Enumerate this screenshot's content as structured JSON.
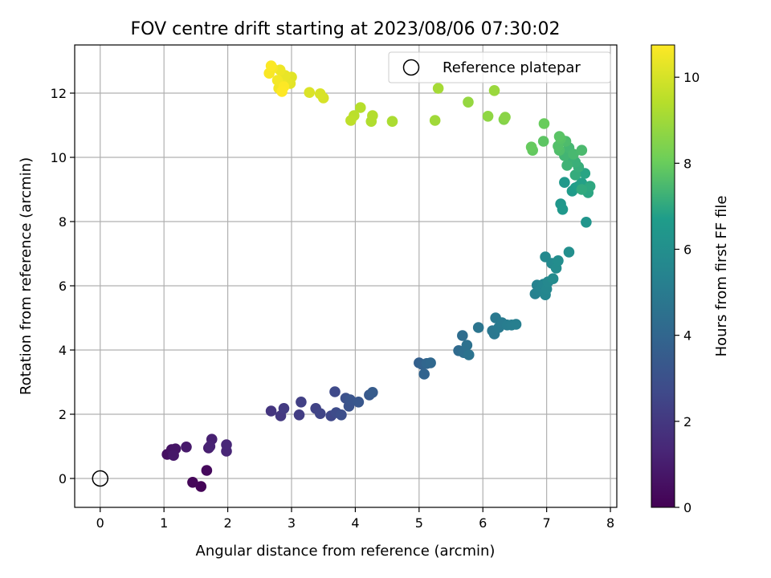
{
  "chart_data": {
    "type": "scatter",
    "title": "FOV centre drift starting at 2023/08/06 07:30:02",
    "xlabel": "Angular distance from reference (arcmin)",
    "ylabel": "Rotation from reference (arcmin)",
    "xlim": [
      -0.4,
      8.1
    ],
    "ylim": [
      -0.9,
      13.5
    ],
    "x_ticks": [
      0,
      1,
      2,
      3,
      4,
      5,
      6,
      7,
      8
    ],
    "y_ticks": [
      0,
      2,
      4,
      6,
      8,
      10,
      12
    ],
    "grid": true,
    "legend": {
      "position": "top-right",
      "label": "Reference platepar"
    },
    "reference_point": {
      "x": 0,
      "y": 0
    },
    "colorbar": {
      "label": "Hours from first FF file",
      "range": [
        0,
        10.75
      ],
      "ticks": [
        0,
        2,
        4,
        6,
        8,
        10
      ],
      "colormap": [
        "#440154",
        "#482777",
        "#3f4a8a",
        "#31678e",
        "#26838f",
        "#1f9d8a",
        "#6cce5a",
        "#b6de2b",
        "#fee825"
      ]
    },
    "points": [
      [
        1.58,
        -0.25,
        0.1
      ],
      [
        1.45,
        -0.12,
        0.2
      ],
      [
        1.67,
        0.25,
        0.3
      ],
      [
        1.05,
        0.75,
        0.5
      ],
      [
        1.12,
        0.9,
        0.6
      ],
      [
        1.18,
        0.92,
        0.7
      ],
      [
        1.15,
        0.72,
        0.8
      ],
      [
        1.35,
        0.98,
        0.9
      ],
      [
        1.7,
        0.95,
        1.0
      ],
      [
        1.75,
        1.22,
        1.1
      ],
      [
        1.72,
        1.0,
        1.2
      ],
      [
        1.98,
        0.85,
        1.3
      ],
      [
        1.98,
        1.05,
        1.4
      ],
      [
        2.68,
        2.1,
        1.9
      ],
      [
        2.83,
        1.95,
        2.0
      ],
      [
        2.88,
        2.18,
        2.1
      ],
      [
        3.12,
        1.98,
        2.2
      ],
      [
        3.15,
        2.38,
        2.3
      ],
      [
        3.38,
        2.18,
        2.4
      ],
      [
        3.45,
        2.02,
        2.5
      ],
      [
        3.62,
        1.95,
        2.6
      ],
      [
        3.68,
        2.7,
        2.7
      ],
      [
        3.7,
        2.05,
        2.8
      ],
      [
        3.78,
        1.98,
        2.9
      ],
      [
        3.85,
        2.5,
        3.0
      ],
      [
        3.9,
        2.25,
        3.1
      ],
      [
        3.92,
        2.45,
        3.2
      ],
      [
        4.05,
        2.38,
        3.3
      ],
      [
        4.22,
        2.6,
        3.4
      ],
      [
        4.27,
        2.68,
        3.5
      ],
      [
        5.0,
        3.6,
        3.7
      ],
      [
        5.05,
        3.55,
        3.8
      ],
      [
        5.08,
        3.25,
        3.9
      ],
      [
        5.12,
        3.58,
        4.0
      ],
      [
        5.18,
        3.6,
        4.1
      ],
      [
        5.62,
        3.98,
        4.2
      ],
      [
        5.68,
        4.45,
        4.3
      ],
      [
        5.7,
        3.92,
        4.4
      ],
      [
        5.75,
        4.15,
        4.5
      ],
      [
        5.78,
        3.85,
        4.6
      ],
      [
        5.93,
        4.7,
        4.7
      ],
      [
        6.15,
        4.6,
        4.8
      ],
      [
        6.18,
        4.5,
        4.85
      ],
      [
        6.2,
        5.0,
        4.9
      ],
      [
        6.25,
        4.7,
        4.95
      ],
      [
        6.3,
        4.85,
        5.0
      ],
      [
        6.38,
        4.78,
        5.1
      ],
      [
        6.45,
        4.78,
        5.15
      ],
      [
        6.52,
        4.8,
        5.2
      ],
      [
        6.82,
        5.75,
        5.3
      ],
      [
        6.85,
        6.02,
        5.35
      ],
      [
        6.88,
        5.85,
        5.4
      ],
      [
        6.92,
        5.95,
        5.45
      ],
      [
        6.95,
        6.05,
        5.5
      ],
      [
        6.98,
        5.72,
        5.55
      ],
      [
        7.0,
        5.9,
        5.6
      ],
      [
        7.02,
        6.12,
        5.65
      ],
      [
        6.98,
        6.9,
        5.7
      ],
      [
        7.08,
        6.7,
        5.75
      ],
      [
        7.1,
        6.22,
        5.8
      ],
      [
        7.15,
        6.55,
        5.85
      ],
      [
        7.18,
        6.78,
        5.9
      ],
      [
        7.35,
        7.05,
        6.0
      ],
      [
        7.62,
        7.98,
        6.3
      ],
      [
        7.22,
        8.55,
        6.4
      ],
      [
        7.25,
        8.38,
        6.45
      ],
      [
        7.28,
        9.22,
        6.5
      ],
      [
        7.4,
        8.95,
        6.6
      ],
      [
        7.45,
        9.05,
        6.7
      ],
      [
        7.5,
        9.1,
        6.75
      ],
      [
        7.55,
        9.2,
        6.8
      ],
      [
        7.6,
        9.5,
        6.9
      ],
      [
        7.65,
        8.9,
        6.95
      ],
      [
        7.68,
        9.1,
        7.0
      ],
      [
        7.55,
        9.0,
        7.05
      ],
      [
        7.45,
        9.45,
        7.1
      ],
      [
        7.5,
        9.7,
        7.15
      ],
      [
        7.45,
        9.85,
        7.2
      ],
      [
        7.38,
        10.0,
        7.25
      ],
      [
        7.32,
        9.75,
        7.3
      ],
      [
        7.28,
        10.05,
        7.35
      ],
      [
        7.35,
        10.3,
        7.4
      ],
      [
        7.42,
        10.1,
        7.45
      ],
      [
        7.55,
        10.22,
        7.5
      ],
      [
        7.3,
        10.5,
        7.55
      ],
      [
        7.2,
        10.22,
        7.6
      ],
      [
        7.18,
        10.35,
        7.65
      ],
      [
        7.22,
        10.58,
        7.7
      ],
      [
        7.2,
        10.65,
        7.75
      ],
      [
        6.95,
        10.5,
        7.8
      ],
      [
        6.78,
        10.22,
        7.9
      ],
      [
        6.76,
        10.32,
        7.95
      ],
      [
        6.96,
        11.05,
        8.0
      ],
      [
        6.33,
        11.18,
        8.5
      ],
      [
        6.35,
        11.25,
        8.6
      ],
      [
        6.08,
        11.28,
        8.7
      ],
      [
        5.77,
        11.72,
        8.8
      ],
      [
        6.18,
        12.08,
        8.9
      ],
      [
        5.25,
        11.15,
        9.0
      ],
      [
        5.3,
        12.15,
        9.1
      ],
      [
        4.58,
        11.12,
        9.2
      ],
      [
        4.25,
        11.12,
        9.3
      ],
      [
        4.27,
        11.3,
        9.35
      ],
      [
        4.08,
        11.55,
        9.4
      ],
      [
        3.98,
        11.3,
        9.5
      ],
      [
        3.93,
        11.15,
        9.55
      ],
      [
        3.5,
        11.85,
        10.0
      ],
      [
        3.45,
        11.98,
        10.05
      ],
      [
        3.28,
        12.02,
        10.1
      ],
      [
        3.0,
        12.5,
        10.2
      ],
      [
        2.98,
        12.3,
        10.25
      ],
      [
        2.92,
        12.35,
        10.3
      ],
      [
        2.9,
        12.55,
        10.35
      ],
      [
        2.85,
        12.3,
        10.4
      ],
      [
        2.82,
        12.72,
        10.45
      ],
      [
        2.8,
        12.15,
        10.5
      ],
      [
        2.78,
        12.4,
        10.55
      ],
      [
        2.7,
        12.78,
        10.6
      ],
      [
        2.65,
        12.62,
        10.65
      ],
      [
        2.68,
        12.85,
        10.7
      ],
      [
        2.88,
        12.2,
        10.72
      ],
      [
        2.85,
        12.05,
        10.75
      ]
    ]
  }
}
